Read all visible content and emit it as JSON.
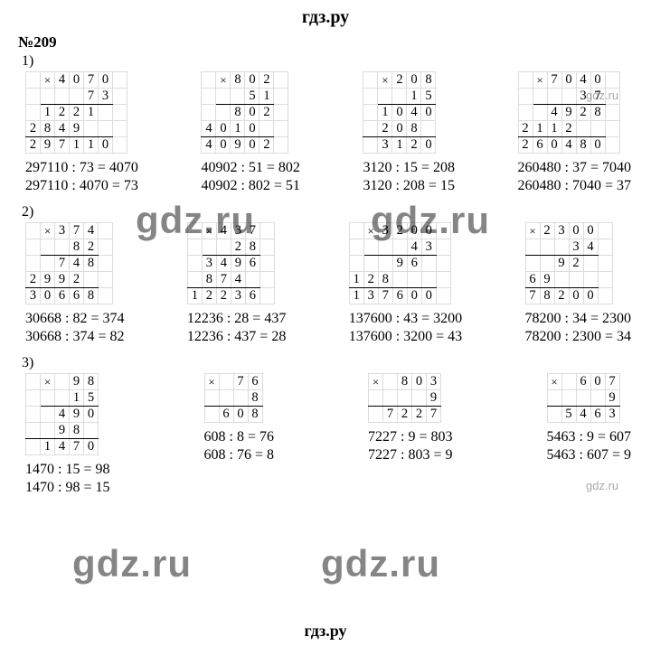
{
  "header": "гдз.ру",
  "footer": "гдз.ру",
  "exercise_number": "№209",
  "watermarks": {
    "big1": "gdz.ru",
    "big2": "gdz.ru",
    "big3": "gdz.ru",
    "big4": "gdz.ru",
    "small1": "gdz.ru",
    "small2": "gdz.ru"
  },
  "parts": [
    {
      "label": "1)",
      "problems": [
        {
          "grid": {
            "cols": 7,
            "rows": [
              {
                "cells": [
                  "",
                  "×",
                  "4",
                  "0",
                  "7",
                  "0",
                  ""
                ],
                "class": ""
              },
              {
                "cells": [
                  "",
                  "",
                  "",
                  "",
                  "7",
                  "3",
                  ""
                ],
                "class": "hline",
                "underline_from": 1,
                "underline_to": 5
              },
              {
                "cells": [
                  "",
                  "1",
                  "2",
                  "2",
                  "1",
                  "",
                  ""
                ],
                "class": ""
              },
              {
                "cells": [
                  "2",
                  "8",
                  "4",
                  "9",
                  "",
                  "",
                  ""
                ],
                "class": "hline",
                "underline_from": 0,
                "underline_to": 5
              },
              {
                "cells": [
                  "2",
                  "9",
                  "7",
                  "1",
                  "1",
                  "0",
                  ""
                ],
                "class": ""
              }
            ]
          },
          "eq1": "297110 : 73 = 4070",
          "eq2": "297110 : 4070 = 73"
        },
        {
          "grid": {
            "cols": 6,
            "rows": [
              {
                "cells": [
                  "",
                  "×",
                  "8",
                  "0",
                  "2",
                  ""
                ],
                "class": ""
              },
              {
                "cells": [
                  "",
                  "",
                  "",
                  "5",
                  "1",
                  ""
                ],
                "class": "hline",
                "underline_from": 1,
                "underline_to": 4
              },
              {
                "cells": [
                  "",
                  "",
                  "8",
                  "0",
                  "2",
                  ""
                ],
                "class": ""
              },
              {
                "cells": [
                  "4",
                  "0",
                  "1",
                  "0",
                  "",
                  ""
                ],
                "class": "hline",
                "underline_from": 0,
                "underline_to": 4
              },
              {
                "cells": [
                  "4",
                  "0",
                  "9",
                  "0",
                  "2",
                  ""
                ],
                "class": ""
              }
            ]
          },
          "eq1": "40902 : 51 = 802",
          "eq2": "40902 : 802 = 51"
        },
        {
          "grid": {
            "cols": 5,
            "rows": [
              {
                "cells": [
                  "",
                  "×",
                  "2",
                  "0",
                  "8"
                ],
                "class": ""
              },
              {
                "cells": [
                  "",
                  "",
                  "",
                  "1",
                  "5"
                ],
                "class": "hline",
                "underline_from": 1,
                "underline_to": 4
              },
              {
                "cells": [
                  "",
                  "1",
                  "0",
                  "4",
                  "0"
                ],
                "class": ""
              },
              {
                "cells": [
                  "",
                  "2",
                  "0",
                  "8",
                  ""
                ],
                "class": "hline",
                "underline_from": 0,
                "underline_to": 4
              },
              {
                "cells": [
                  "",
                  "3",
                  "1",
                  "2",
                  "0"
                ],
                "class": ""
              }
            ]
          },
          "eq1": "3120 : 15 = 208",
          "eq2": "3120 : 208 = 15"
        },
        {
          "grid": {
            "cols": 7,
            "rows": [
              {
                "cells": [
                  "",
                  "×",
                  "7",
                  "0",
                  "4",
                  "0",
                  ""
                ],
                "class": ""
              },
              {
                "cells": [
                  "",
                  "",
                  "",
                  "",
                  "3",
                  "7",
                  ""
                ],
                "class": "hline",
                "underline_from": 1,
                "underline_to": 5
              },
              {
                "cells": [
                  "",
                  "",
                  "4",
                  "9",
                  "2",
                  "8",
                  ""
                ],
                "class": ""
              },
              {
                "cells": [
                  "2",
                  "1",
                  "1",
                  "2",
                  "",
                  "",
                  ""
                ],
                "class": "hline",
                "underline_from": 0,
                "underline_to": 5
              },
              {
                "cells": [
                  "2",
                  "6",
                  "0",
                  "4",
                  "8",
                  "0",
                  ""
                ],
                "class": ""
              }
            ]
          },
          "eq1": "260480 : 37 = 7040",
          "eq2": "260480 : 7040 = 37"
        }
      ]
    },
    {
      "label": "2)",
      "problems": [
        {
          "grid": {
            "cols": 6,
            "rows": [
              {
                "cells": [
                  "",
                  "×",
                  "3",
                  "7",
                  "4",
                  ""
                ],
                "class": ""
              },
              {
                "cells": [
                  "",
                  "",
                  "",
                  "8",
                  "2",
                  ""
                ],
                "class": "hline",
                "underline_from": 1,
                "underline_to": 4
              },
              {
                "cells": [
                  "",
                  "",
                  "7",
                  "4",
                  "8",
                  ""
                ],
                "class": ""
              },
              {
                "cells": [
                  "2",
                  "9",
                  "9",
                  "2",
                  "",
                  ""
                ],
                "class": "hline",
                "underline_from": 0,
                "underline_to": 4
              },
              {
                "cells": [
                  "3",
                  "0",
                  "6",
                  "6",
                  "8",
                  ""
                ],
                "class": ""
              }
            ]
          },
          "eq1": "30668 : 82 = 374",
          "eq2": "30668 : 374 = 82"
        },
        {
          "grid": {
            "cols": 6,
            "rows": [
              {
                "cells": [
                  "",
                  "×",
                  "4",
                  "3",
                  "7",
                  ""
                ],
                "class": ""
              },
              {
                "cells": [
                  "",
                  "",
                  "",
                  "2",
                  "8",
                  ""
                ],
                "class": "hline",
                "underline_from": 1,
                "underline_to": 4
              },
              {
                "cells": [
                  "",
                  "3",
                  "4",
                  "9",
                  "6",
                  ""
                ],
                "class": ""
              },
              {
                "cells": [
                  "",
                  "8",
                  "7",
                  "4",
                  "",
                  ""
                ],
                "class": "hline",
                "underline_from": 0,
                "underline_to": 4
              },
              {
                "cells": [
                  "1",
                  "2",
                  "2",
                  "3",
                  "6",
                  ""
                ],
                "class": ""
              }
            ]
          },
          "eq1": "12236 : 28 = 437",
          "eq2": "12236 : 437 = 28"
        },
        {
          "grid": {
            "cols": 7,
            "rows": [
              {
                "cells": [
                  "",
                  "×",
                  "3",
                  "2",
                  "0",
                  "0",
                  ""
                ],
                "class": ""
              },
              {
                "cells": [
                  "",
                  "",
                  "",
                  "",
                  "4",
                  "3",
                  ""
                ],
                "class": "hline",
                "underline_from": 1,
                "underline_to": 5
              },
              {
                "cells": [
                  "",
                  "",
                  "",
                  "9",
                  "6",
                  "",
                  ""
                ],
                "class": ""
              },
              {
                "cells": [
                  "1",
                  "2",
                  "8",
                  "",
                  "",
                  "",
                  ""
                ],
                "class": "hline",
                "underline_from": 0,
                "underline_to": 5
              },
              {
                "cells": [
                  "1",
                  "3",
                  "7",
                  "6",
                  "0",
                  "0",
                  ""
                ],
                "class": ""
              }
            ]
          },
          "eq1": "137600 : 43 = 3200",
          "eq2": "137600 : 3200 = 43"
        },
        {
          "grid": {
            "cols": 6,
            "rows": [
              {
                "cells": [
                  "×",
                  "2",
                  "3",
                  "0",
                  "0",
                  ""
                ],
                "class": ""
              },
              {
                "cells": [
                  "",
                  "",
                  "",
                  "3",
                  "4",
                  ""
                ],
                "class": "hline",
                "underline_from": 0,
                "underline_to": 4
              },
              {
                "cells": [
                  "",
                  "",
                  "9",
                  "2",
                  "",
                  ""
                ],
                "class": ""
              },
              {
                "cells": [
                  "6",
                  "9",
                  "",
                  "",
                  "",
                  ""
                ],
                "class": "hline",
                "underline_from": 0,
                "underline_to": 4
              },
              {
                "cells": [
                  "7",
                  "8",
                  "2",
                  "0",
                  "0",
                  ""
                ],
                "class": ""
              }
            ]
          },
          "eq1": "78200 : 34 = 2300",
          "eq2": "78200 : 2300 = 34"
        }
      ]
    },
    {
      "label": "3)",
      "problems": [
        {
          "grid": {
            "cols": 5,
            "rows": [
              {
                "cells": [
                  "",
                  "×",
                  "",
                  "9",
                  "8"
                ],
                "class": ""
              },
              {
                "cells": [
                  "",
                  "",
                  "",
                  "1",
                  "5"
                ],
                "class": "hline",
                "underline_from": 1,
                "underline_to": 4
              },
              {
                "cells": [
                  "",
                  "",
                  "4",
                  "9",
                  "0"
                ],
                "class": ""
              },
              {
                "cells": [
                  "",
                  "",
                  "9",
                  "8",
                  ""
                ],
                "class": "hline",
                "underline_from": 0,
                "underline_to": 4
              },
              {
                "cells": [
                  "",
                  "1",
                  "4",
                  "7",
                  "0"
                ],
                "class": ""
              }
            ]
          },
          "eq1": "1470 : 15 = 98",
          "eq2": "1470 : 98 = 15"
        },
        {
          "grid": {
            "cols": 4,
            "rows": [
              {
                "cells": [
                  "×",
                  "",
                  "7",
                  "6"
                ],
                "class": ""
              },
              {
                "cells": [
                  "",
                  "",
                  "",
                  "8"
                ],
                "class": "hline",
                "underline_from": 0,
                "underline_to": 3
              },
              {
                "cells": [
                  "",
                  "6",
                  "0",
                  "8"
                ],
                "class": ""
              }
            ]
          },
          "eq1": "608 : 8 = 76",
          "eq2": "608 : 76 = 8"
        },
        {
          "grid": {
            "cols": 5,
            "rows": [
              {
                "cells": [
                  "×",
                  "",
                  "8",
                  "0",
                  "3"
                ],
                "class": ""
              },
              {
                "cells": [
                  "",
                  "",
                  "",
                  "",
                  "9"
                ],
                "class": "hline",
                "underline_from": 0,
                "underline_to": 4
              },
              {
                "cells": [
                  "",
                  "7",
                  "2",
                  "2",
                  "7"
                ],
                "class": ""
              }
            ]
          },
          "eq1": "7227 : 9 = 803",
          "eq2": "7227 : 803 = 9"
        },
        {
          "grid": {
            "cols": 5,
            "rows": [
              {
                "cells": [
                  "×",
                  "",
                  "6",
                  "0",
                  "7"
                ],
                "class": ""
              },
              {
                "cells": [
                  "",
                  "",
                  "",
                  "",
                  "9"
                ],
                "class": "hline",
                "underline_from": 0,
                "underline_to": 4
              },
              {
                "cells": [
                  "",
                  "5",
                  "4",
                  "6",
                  "3"
                ],
                "class": ""
              }
            ]
          },
          "eq1": "5463 : 9 = 607",
          "eq2": "5463 : 607 = 9"
        }
      ]
    }
  ],
  "styling": {
    "cell_border_color": "#dcdcdc",
    "hline_color": "#000000",
    "font_body": "Times New Roman",
    "header_fontsize": 20,
    "eq_fontsize": 16,
    "grid_fontsize": 14.5,
    "wm_big_fontsize": 42,
    "wm_small_fontsize": 13,
    "wm_color": "rgba(0,0,0,0.48)"
  }
}
